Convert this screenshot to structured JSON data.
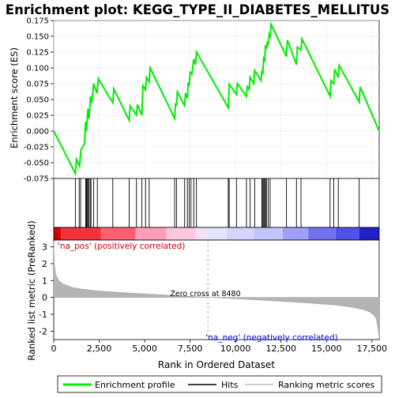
{
  "title": "Enrichment plot: KEGG_TYPE_II_DIABETES_MELLITUS",
  "top_panel": {
    "ylabel": "Enrichment score (ES)",
    "yticks": [
      "0.175",
      "0.150",
      "0.125",
      "0.100",
      "0.075",
      "0.050",
      "0.025",
      "0.000",
      "-0.025",
      "-0.050",
      "-0.075"
    ]
  },
  "bottom_panel": {
    "ylabel": "Ranked list metric (PreRanked)",
    "xlabel": "Rank in Ordered Dataset",
    "yticks": [
      "3",
      "2",
      "1",
      "0",
      "-1",
      "-2"
    ],
    "xticks": [
      "0",
      "2,500",
      "5,000",
      "7,500",
      "10,000",
      "12,500",
      "15,000",
      "17,500"
    ],
    "zero_cross_label": "Zero cross at 8480",
    "pos_label": "'na_pos' (positively correlated)",
    "neg_label": "'na_neg' (negatively correlated)"
  },
  "legend": {
    "items": [
      {
        "label": "Enrichment profile",
        "color": "#00ee00"
      },
      {
        "label": "Hits",
        "color": "#000000"
      },
      {
        "label": "Ranking metric scores",
        "color": "#c0c0c0"
      }
    ]
  },
  "colors": {
    "es_line": "#00ee00",
    "pos_text": "#cc0000",
    "neg_text": "#0000cc",
    "metric_fill": "#b4b4b4"
  },
  "chart_data": {
    "type": "line",
    "x_range": [
      0,
      17900
    ],
    "es_ylim": [
      -0.075,
      0.175
    ],
    "metric_ylim": [
      -2.5,
      3.4
    ],
    "zero_cross": 8480,
    "es_profile": {
      "x": [
        0,
        1190,
        1250,
        1420,
        1500,
        1690,
        1760,
        1800,
        1880,
        1940,
        2030,
        2090,
        2200,
        2380,
        2450,
        3250,
        3300,
        4150,
        4200,
        4550,
        4600,
        4850,
        4900,
        5050,
        5100,
        5250,
        5300,
        6650,
        6700,
        6750,
        6800,
        7200,
        7250,
        7350,
        7400,
        7450,
        7500,
        7600,
        7700,
        7800,
        7850,
        9600,
        9650,
        10050,
        10100,
        10600,
        10650,
        10750,
        10800,
        11000,
        11050,
        11400,
        11450,
        11500,
        11550,
        11600,
        11650,
        11700,
        11750,
        11800,
        11850,
        11900,
        11950,
        12800,
        12850,
        13350,
        13400,
        13600,
        13650,
        15200,
        15250,
        15400,
        15450,
        15650,
        15700,
        16800,
        16850,
        17900
      ],
      "y": [
        0.0,
        -0.067,
        -0.045,
        -0.055,
        -0.03,
        -0.02,
        0.015,
        0.0,
        0.035,
        0.02,
        0.055,
        0.045,
        0.075,
        0.06,
        0.083,
        0.045,
        0.067,
        0.017,
        0.04,
        0.025,
        0.042,
        0.025,
        0.072,
        0.065,
        0.085,
        0.078,
        0.1,
        0.02,
        0.044,
        0.04,
        0.062,
        0.04,
        0.06,
        0.052,
        0.077,
        0.072,
        0.093,
        0.09,
        0.114,
        0.105,
        0.125,
        0.037,
        0.074,
        0.058,
        0.075,
        0.055,
        0.072,
        0.065,
        0.085,
        0.075,
        0.096,
        0.08,
        0.094,
        0.092,
        0.115,
        0.112,
        0.136,
        0.13,
        0.14,
        0.138,
        0.153,
        0.15,
        0.169,
        0.118,
        0.144,
        0.105,
        0.133,
        0.128,
        0.146,
        0.055,
        0.08,
        0.075,
        0.098,
        0.085,
        0.104,
        0.046,
        0.07,
        0.0
      ]
    },
    "hits": [
      1190,
      1400,
      1480,
      1760,
      1800,
      1830,
      1880,
      1920,
      2000,
      2050,
      2200,
      2400,
      3250,
      4150,
      4550,
      4850,
      5050,
      5250,
      6650,
      6750,
      7200,
      7350,
      7450,
      7550,
      7700,
      7850,
      9600,
      9650,
      10050,
      10600,
      10800,
      11050,
      11450,
      11500,
      11550,
      11600,
      11650,
      11700,
      11800,
      11900,
      12800,
      13350,
      13600,
      15200,
      15400,
      15650,
      16800
    ],
    "ranked_metric": {
      "x": [
        0,
        30,
        100,
        250,
        500,
        1000,
        1500,
        2500,
        4000,
        6000,
        8480,
        10000,
        12000,
        14000,
        15500,
        16500,
        17000,
        17400,
        17600,
        17750,
        17850,
        17900
      ],
      "y": [
        3.3,
        2.0,
        1.4,
        1.05,
        0.8,
        0.6,
        0.5,
        0.38,
        0.27,
        0.15,
        0.0,
        -0.08,
        -0.2,
        -0.33,
        -0.45,
        -0.6,
        -0.72,
        -0.88,
        -1.05,
        -1.3,
        -2.0,
        -2.4
      ]
    },
    "color_band": [
      {
        "from": 0,
        "to": 400,
        "color": "#d40000"
      },
      {
        "from": 400,
        "to": 2600,
        "color": "#f43038"
      },
      {
        "from": 2600,
        "to": 4500,
        "color": "#fc6070"
      },
      {
        "from": 4500,
        "to": 6200,
        "color": "#fca0b8"
      },
      {
        "from": 6200,
        "to": 7800,
        "color": "#fcc8e0"
      },
      {
        "from": 7800,
        "to": 8480,
        "color": "#f4e0f4"
      },
      {
        "from": 8480,
        "to": 9500,
        "color": "#e4e4fc"
      },
      {
        "from": 9500,
        "to": 11000,
        "color": "#d4d4fc"
      },
      {
        "from": 11000,
        "to": 12600,
        "color": "#c4c4fc"
      },
      {
        "from": 12600,
        "to": 14000,
        "color": "#a0a0f8"
      },
      {
        "from": 14000,
        "to": 15500,
        "color": "#7070f0"
      },
      {
        "from": 15500,
        "to": 16800,
        "color": "#5050e8"
      },
      {
        "from": 16800,
        "to": 17900,
        "color": "#2020c8"
      }
    ]
  }
}
